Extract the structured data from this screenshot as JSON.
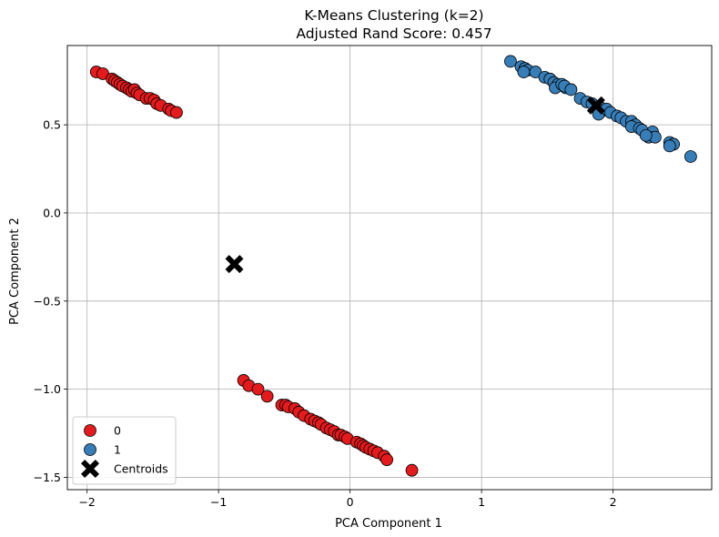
{
  "chart_data": {
    "type": "scatter",
    "title": "K-Means Clustering (k=2)",
    "subtitle": "Adjusted Rand Score: 0.457",
    "xlabel": "PCA Component 1",
    "ylabel": "PCA Component 2",
    "xlim": [
      -2.15,
      2.75
    ],
    "ylim": [
      -1.57,
      0.95
    ],
    "xticks": [
      -2,
      -1,
      0,
      1,
      2
    ],
    "yticks": [
      -1.5,
      -1.0,
      -0.5,
      0.0,
      0.5
    ],
    "xtick_labels": [
      "−2",
      "−1",
      "0",
      "1",
      "2"
    ],
    "ytick_labels": [
      "−1.5",
      "−1.0",
      "−0.5",
      "0.0",
      "0.5"
    ],
    "grid": true,
    "legend_position": "lower-left",
    "series": [
      {
        "name": "0",
        "color": "#e41a1c",
        "marker": "circle",
        "points": [
          [
            -1.93,
            0.8
          ],
          [
            -1.88,
            0.79
          ],
          [
            -1.81,
            0.76
          ],
          [
            -1.79,
            0.75
          ],
          [
            -1.77,
            0.74
          ],
          [
            -1.75,
            0.73
          ],
          [
            -1.73,
            0.72
          ],
          [
            -1.7,
            0.71
          ],
          [
            -1.68,
            0.7
          ],
          [
            -1.66,
            0.69
          ],
          [
            -1.64,
            0.7
          ],
          [
            -1.62,
            0.68
          ],
          [
            -1.6,
            0.67
          ],
          [
            -1.55,
            0.65
          ],
          [
            -1.52,
            0.65
          ],
          [
            -1.49,
            0.64
          ],
          [
            -1.47,
            0.62
          ],
          [
            -1.44,
            0.61
          ],
          [
            -1.38,
            0.59
          ],
          [
            -1.36,
            0.58
          ],
          [
            -1.32,
            0.57
          ],
          [
            -0.81,
            -0.95
          ],
          [
            -0.77,
            -0.98
          ],
          [
            -0.7,
            -1.0
          ],
          [
            -0.63,
            -1.04
          ],
          [
            -0.52,
            -1.09
          ],
          [
            -0.49,
            -1.09
          ],
          [
            -0.47,
            -1.1
          ],
          [
            -0.42,
            -1.11
          ],
          [
            -0.39,
            -1.13
          ],
          [
            -0.35,
            -1.15
          ],
          [
            -0.3,
            -1.17
          ],
          [
            -0.27,
            -1.18
          ],
          [
            -0.24,
            -1.19
          ],
          [
            -0.22,
            -1.2
          ],
          [
            -0.18,
            -1.22
          ],
          [
            -0.15,
            -1.23
          ],
          [
            -0.12,
            -1.24
          ],
          [
            -0.09,
            -1.26
          ],
          [
            -0.07,
            -1.26
          ],
          [
            -0.04,
            -1.27
          ],
          [
            -0.02,
            -1.28
          ],
          [
            0.05,
            -1.3
          ],
          [
            0.08,
            -1.31
          ],
          [
            0.1,
            -1.32
          ],
          [
            0.12,
            -1.33
          ],
          [
            0.15,
            -1.34
          ],
          [
            0.18,
            -1.35
          ],
          [
            0.21,
            -1.36
          ],
          [
            0.26,
            -1.38
          ],
          [
            0.28,
            -1.4
          ],
          [
            0.47,
            -1.46
          ]
        ]
      },
      {
        "name": "1",
        "color": "#377eb8",
        "marker": "circle",
        "points": [
          [
            1.22,
            0.86
          ],
          [
            1.3,
            0.83
          ],
          [
            1.33,
            0.82
          ],
          [
            1.35,
            0.81
          ],
          [
            1.32,
            0.8
          ],
          [
            1.41,
            0.8
          ],
          [
            1.48,
            0.77
          ],
          [
            1.52,
            0.76
          ],
          [
            1.55,
            0.74
          ],
          [
            1.58,
            0.73
          ],
          [
            1.56,
            0.71
          ],
          [
            1.61,
            0.73
          ],
          [
            1.64,
            0.71
          ],
          [
            1.63,
            0.72
          ],
          [
            1.68,
            0.7
          ],
          [
            1.75,
            0.65
          ],
          [
            1.8,
            0.63
          ],
          [
            1.84,
            0.62
          ],
          [
            1.9,
            0.6
          ],
          [
            1.92,
            0.58
          ],
          [
            1.89,
            0.56
          ],
          [
            1.95,
            0.59
          ],
          [
            1.98,
            0.57
          ],
          [
            2.03,
            0.55
          ],
          [
            2.06,
            0.54
          ],
          [
            2.1,
            0.52
          ],
          [
            2.14,
            0.52
          ],
          [
            2.17,
            0.5
          ],
          [
            2.14,
            0.49
          ],
          [
            2.2,
            0.48
          ],
          [
            2.22,
            0.47
          ],
          [
            2.3,
            0.46
          ],
          [
            2.27,
            0.43
          ],
          [
            2.32,
            0.43
          ],
          [
            2.25,
            0.44
          ],
          [
            2.43,
            0.4
          ],
          [
            2.46,
            0.39
          ],
          [
            2.43,
            0.38
          ],
          [
            2.59,
            0.32
          ]
        ]
      },
      {
        "name": "Centroids",
        "color": "#000000",
        "marker": "X",
        "points": [
          [
            -0.88,
            -0.29
          ],
          [
            1.87,
            0.61
          ]
        ]
      }
    ]
  }
}
